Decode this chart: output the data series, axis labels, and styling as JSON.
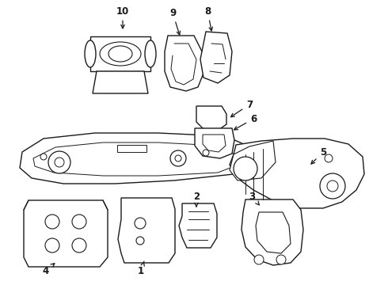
{
  "bg_color": "#ffffff",
  "line_color": "#1a1a1a",
  "line_width": 1.0,
  "fig_width": 4.9,
  "fig_height": 3.6,
  "dpi": 100
}
